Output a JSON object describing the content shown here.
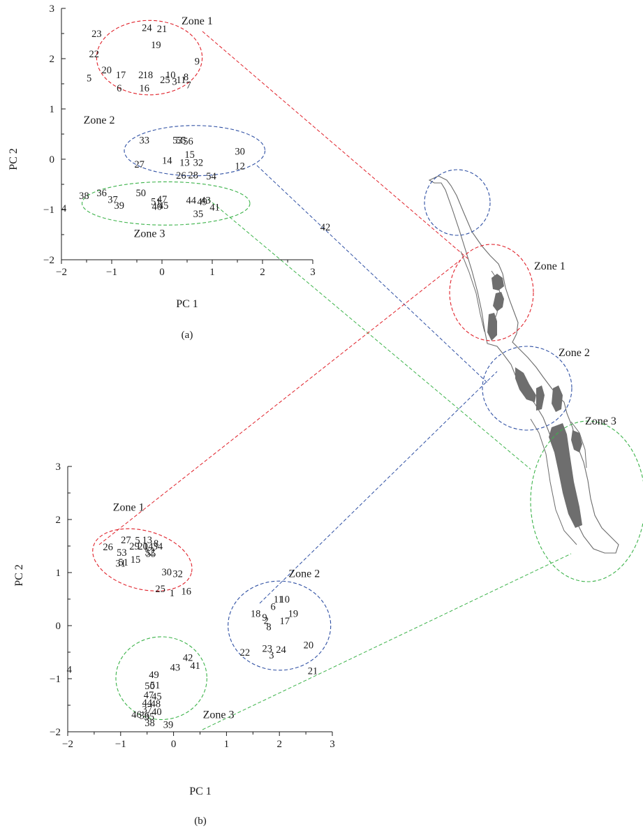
{
  "colors": {
    "zone1": "#e0212a",
    "zone2": "#2e4fa3",
    "zone3": "#3cb34a",
    "lake": "#6e6e6e",
    "outline": "#6b6b6b"
  },
  "chart_data": [
    {
      "type": "scatter",
      "panel": "(a)",
      "xlabel": "PC 1",
      "ylabel": "PC 2",
      "xlim": [
        -2,
        3
      ],
      "ylim": [
        -2,
        3
      ],
      "xticks": [
        "−2",
        "−1",
        "0",
        "1",
        "2",
        "3"
      ],
      "yticks": [
        "−2",
        "−1",
        "0",
        "1",
        "2",
        "3"
      ],
      "points": [
        {
          "label": "24",
          "x": -0.3,
          "y": 2.62
        },
        {
          "label": "21",
          "x": 0.0,
          "y": 2.6
        },
        {
          "label": "23",
          "x": -1.3,
          "y": 2.5
        },
        {
          "label": "19",
          "x": -0.12,
          "y": 2.28
        },
        {
          "label": "22",
          "x": -1.35,
          "y": 2.1
        },
        {
          "label": "9",
          "x": 0.7,
          "y": 1.95
        },
        {
          "label": "20",
          "x": -1.1,
          "y": 1.78
        },
        {
          "label": "17",
          "x": -0.82,
          "y": 1.68
        },
        {
          "label": "2",
          "x": -0.42,
          "y": 1.68
        },
        {
          "label": "18",
          "x": -0.28,
          "y": 1.68
        },
        {
          "label": "10",
          "x": 0.17,
          "y": 1.68
        },
        {
          "label": "8",
          "x": 0.48,
          "y": 1.64
        },
        {
          "label": "5",
          "x": -1.45,
          "y": 1.62
        },
        {
          "label": "25",
          "x": 0.06,
          "y": 1.58
        },
        {
          "label": "3",
          "x": 0.25,
          "y": 1.55
        },
        {
          "label": "11",
          "x": 0.38,
          "y": 1.58
        },
        {
          "label": "7",
          "x": 0.53,
          "y": 1.48
        },
        {
          "label": "6",
          "x": -0.85,
          "y": 1.42
        },
        {
          "label": "16",
          "x": -0.35,
          "y": 1.42
        },
        {
          "label": "33",
          "x": -0.35,
          "y": 0.38
        },
        {
          "label": "53",
          "x": 0.31,
          "y": 0.38
        },
        {
          "label": "55",
          "x": 0.38,
          "y": 0.38
        },
        {
          "label": "56",
          "x": 0.52,
          "y": 0.36
        },
        {
          "label": "30",
          "x": 1.55,
          "y": 0.16
        },
        {
          "label": "15",
          "x": 0.55,
          "y": 0.1
        },
        {
          "label": "27",
          "x": -0.45,
          "y": -0.1
        },
        {
          "label": "14",
          "x": 0.1,
          "y": -0.02
        },
        {
          "label": "13",
          "x": 0.45,
          "y": -0.06
        },
        {
          "label": "32",
          "x": 0.72,
          "y": -0.06
        },
        {
          "label": "12",
          "x": 1.55,
          "y": -0.13
        },
        {
          "label": "26",
          "x": 0.38,
          "y": -0.32
        },
        {
          "label": "28",
          "x": 0.62,
          "y": -0.31
        },
        {
          "label": "54",
          "x": 0.98,
          "y": -0.33
        },
        {
          "label": "38",
          "x": -1.55,
          "y": -0.72
        },
        {
          "label": "36",
          "x": -1.2,
          "y": -0.67
        },
        {
          "label": "50",
          "x": -0.42,
          "y": -0.67
        },
        {
          "label": "37",
          "x": -0.98,
          "y": -0.8
        },
        {
          "label": "47",
          "x": 0.0,
          "y": -0.79
        },
        {
          "label": "44",
          "x": 0.58,
          "y": -0.81
        },
        {
          "label": "43",
          "x": 0.87,
          "y": -0.81
        },
        {
          "label": "49",
          "x": 0.8,
          "y": -0.84
        },
        {
          "label": "51",
          "x": -0.12,
          "y": -0.84
        },
        {
          "label": "39",
          "x": -0.85,
          "y": -0.92
        },
        {
          "label": "40",
          "x": -0.1,
          "y": -0.94
        },
        {
          "label": "45",
          "x": 0.03,
          "y": -0.92
        },
        {
          "label": "41",
          "x": 1.05,
          "y": -0.95
        },
        {
          "label": "35",
          "x": 0.72,
          "y": -1.08
        },
        {
          "label": "4",
          "x": -1.95,
          "y": -0.97
        },
        {
          "label": "42",
          "x": 3.25,
          "y": -1.35
        }
      ],
      "zones": [
        {
          "name": "Zone 1",
          "color": "zone1",
          "cx": -0.25,
          "cy": 2.02,
          "rx": 1.05,
          "ry": 0.74
        },
        {
          "name": "Zone 2",
          "color": "zone2",
          "cx": 0.65,
          "cy": 0.17,
          "rx": 1.4,
          "ry": 0.5
        },
        {
          "name": "Zone 3",
          "color": "zone3",
          "cx": 0.08,
          "cy": -0.88,
          "rx": 1.67,
          "ry": 0.43
        }
      ],
      "zone_labels": [
        {
          "text": "Zone 1",
          "x": 0.7,
          "y": 2.75
        },
        {
          "text": "Zone 2",
          "x": -1.25,
          "y": 0.78
        },
        {
          "text": "Zone 3",
          "x": -0.25,
          "y": -1.48
        }
      ]
    },
    {
      "type": "scatter",
      "panel": "(b)",
      "xlabel": "PC 1",
      "ylabel": "PC 2",
      "xlim": [
        -2,
        3
      ],
      "ylim": [
        -2,
        3
      ],
      "xticks": [
        "−2",
        "−1",
        "0",
        "1",
        "2",
        "3"
      ],
      "yticks": [
        "−2",
        "−1",
        "0",
        "1",
        "2",
        "3"
      ],
      "points": [
        {
          "label": "27",
          "x": -0.9,
          "y": 1.62
        },
        {
          "label": "5",
          "x": -0.68,
          "y": 1.61
        },
        {
          "label": "13",
          "x": -0.5,
          "y": 1.62
        },
        {
          "label": "8",
          "x": -0.33,
          "y": 1.55
        },
        {
          "label": "26",
          "x": -1.24,
          "y": 1.49
        },
        {
          "label": "29",
          "x": -0.74,
          "y": 1.5
        },
        {
          "label": "20",
          "x": -0.58,
          "y": 1.5
        },
        {
          "label": "14",
          "x": -0.48,
          "y": 1.5
        },
        {
          "label": "34",
          "x": -0.3,
          "y": 1.5
        },
        {
          "label": "53",
          "x": -0.98,
          "y": 1.38
        },
        {
          "label": "52",
          "x": -0.45,
          "y": 1.39
        },
        {
          "label": "55",
          "x": -0.43,
          "y": 1.36
        },
        {
          "label": "15",
          "x": -0.72,
          "y": 1.25
        },
        {
          "label": "51",
          "x": -0.95,
          "y": 1.2
        },
        {
          "label": "31",
          "x": -1.0,
          "y": 1.18
        },
        {
          "label": "30",
          "x": -0.13,
          "y": 1.01
        },
        {
          "label": "32",
          "x": 0.08,
          "y": 0.98
        },
        {
          "label": "25",
          "x": -0.25,
          "y": 0.7
        },
        {
          "label": "1",
          "x": -0.03,
          "y": 0.62
        },
        {
          "label": "16",
          "x": 0.24,
          "y": 0.65
        },
        {
          "label": "11",
          "x": 1.98,
          "y": 0.5
        },
        {
          "label": "10",
          "x": 2.1,
          "y": 0.5
        },
        {
          "label": "6",
          "x": 1.88,
          "y": 0.36
        },
        {
          "label": "18",
          "x": 1.55,
          "y": 0.23
        },
        {
          "label": "19",
          "x": 2.26,
          "y": 0.23
        },
        {
          "label": "9",
          "x": 1.72,
          "y": 0.16
        },
        {
          "label": "2",
          "x": 1.75,
          "y": 0.1
        },
        {
          "label": "17",
          "x": 2.1,
          "y": 0.09
        },
        {
          "label": "8",
          "x": 1.8,
          "y": -0.02
        },
        {
          "label": "20",
          "x": 2.55,
          "y": -0.36
        },
        {
          "label": "22",
          "x": 1.35,
          "y": -0.5
        },
        {
          "label": "23",
          "x": 1.77,
          "y": -0.43
        },
        {
          "label": "24",
          "x": 2.03,
          "y": -0.45
        },
        {
          "label": "3",
          "x": 1.85,
          "y": -0.55
        },
        {
          "label": "21",
          "x": 2.63,
          "y": -0.85
        },
        {
          "label": "42",
          "x": 0.27,
          "y": -0.6
        },
        {
          "label": "43",
          "x": 0.03,
          "y": -0.78
        },
        {
          "label": "41",
          "x": 0.41,
          "y": -0.75
        },
        {
          "label": "49",
          "x": -0.37,
          "y": -0.92
        },
        {
          "label": "4",
          "x": -1.97,
          "y": -0.82
        },
        {
          "label": "50",
          "x": -0.45,
          "y": -1.13
        },
        {
          "label": "51",
          "x": -0.35,
          "y": -1.12
        },
        {
          "label": "47",
          "x": -0.47,
          "y": -1.3
        },
        {
          "label": "45",
          "x": -0.32,
          "y": -1.33
        },
        {
          "label": "44",
          "x": -0.5,
          "y": -1.45
        },
        {
          "label": "48",
          "x": -0.34,
          "y": -1.47
        },
        {
          "label": "37",
          "x": -0.5,
          "y": -1.57
        },
        {
          "label": "40",
          "x": -0.32,
          "y": -1.62
        },
        {
          "label": "46",
          "x": -0.7,
          "y": -1.67
        },
        {
          "label": "36",
          "x": -0.55,
          "y": -1.69
        },
        {
          "label": "35",
          "x": -0.46,
          "y": -1.71
        },
        {
          "label": "38",
          "x": -0.45,
          "y": -1.83
        },
        {
          "label": "39",
          "x": -0.1,
          "y": -1.86
        }
      ],
      "zones": [
        {
          "name": "Zone 1",
          "color": "zone1",
          "cx": -0.59,
          "cy": 1.24,
          "rx": 0.96,
          "ry": 0.55,
          "rotate": 15
        },
        {
          "name": "Zone 2",
          "color": "zone2",
          "cx": 2.0,
          "cy": 0.0,
          "rx": 0.97,
          "ry": 0.84
        },
        {
          "name": "Zone 3",
          "color": "zone3",
          "cx": -0.23,
          "cy": -0.99,
          "rx": 0.86,
          "ry": 0.78
        }
      ],
      "zone_labels": [
        {
          "text": "Zone 1",
          "x": -0.85,
          "y": 2.23
        },
        {
          "text": "Zone 2",
          "x": 2.47,
          "y": 0.98
        },
        {
          "text": "Zone 3",
          "x": 0.85,
          "y": -1.68
        }
      ]
    }
  ],
  "map": {
    "zone_labels": [
      "Zone 1",
      "Zone 2",
      "Zone 3"
    ]
  }
}
